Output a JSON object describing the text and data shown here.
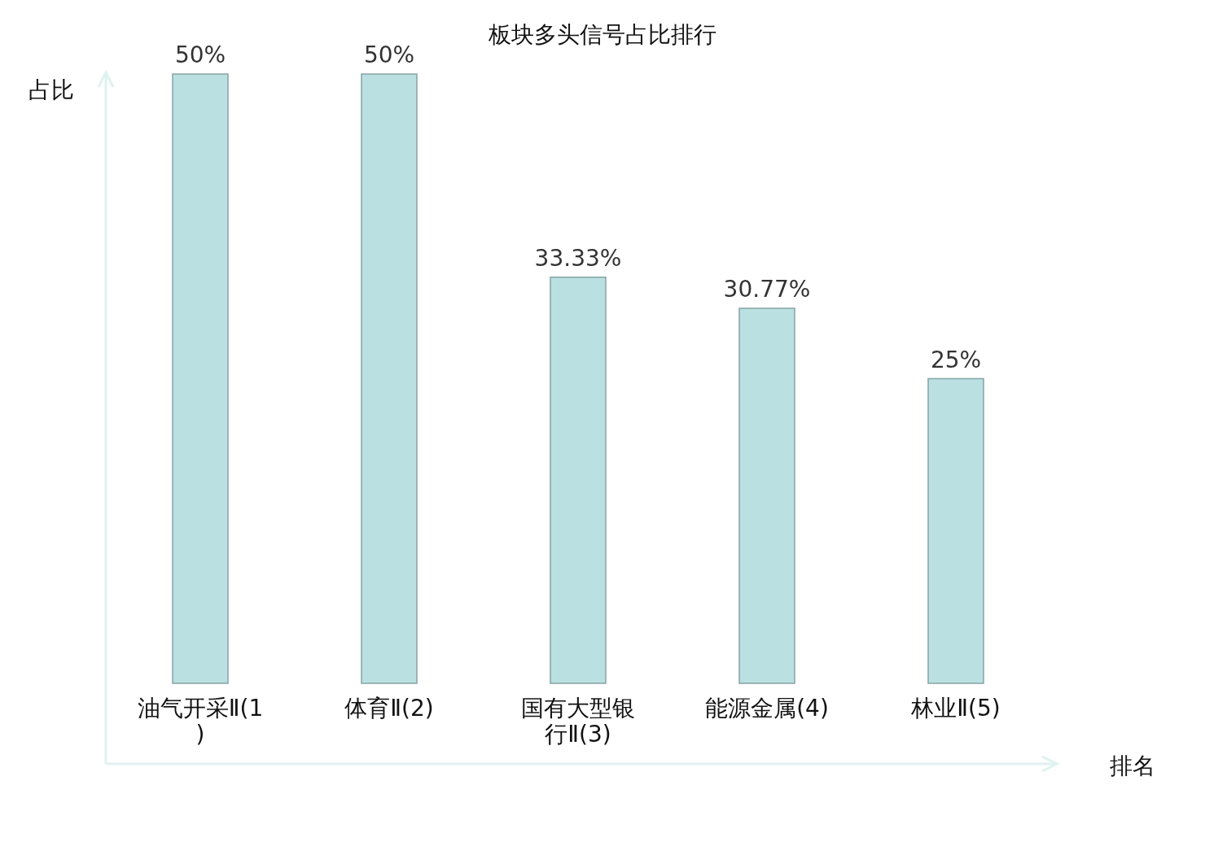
{
  "chart_data": {
    "type": "bar",
    "title": "板块多头信号占比排行",
    "xlabel": "排名",
    "ylabel": "占比",
    "categories": [
      "油气开采Ⅱ(1)",
      "体育Ⅱ(2)",
      "国有大型银行Ⅱ(3)",
      "能源金属(4)",
      "林业Ⅱ(5)"
    ],
    "values": [
      50,
      50,
      33.33,
      30.77,
      25
    ],
    "value_labels": [
      "50%",
      "50%",
      "33.33%",
      "30.77%",
      "25%"
    ],
    "color": "#bbe0e2"
  }
}
